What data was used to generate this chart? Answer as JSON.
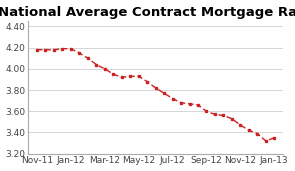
{
  "title": "National Average Contract Mortgage Rate",
  "x_labels": [
    "Nov-11",
    "Jan-12",
    "Mar-12",
    "May-12",
    "Jul-12",
    "Sep-12",
    "Nov-12",
    "Jan-13"
  ],
  "x_values": [
    0,
    2,
    4,
    6,
    8,
    10,
    12,
    14
  ],
  "y_data_x": [
    0,
    0.5,
    1,
    1.5,
    2,
    2.5,
    3,
    3.5,
    4,
    4.5,
    5,
    5.5,
    6,
    6.5,
    7,
    7.5,
    8,
    8.5,
    9,
    9.5,
    10,
    10.5,
    11,
    11.5,
    12,
    12.5,
    13,
    13.5,
    14
  ],
  "y_data_y": [
    4.18,
    4.18,
    4.18,
    4.19,
    4.19,
    4.15,
    4.1,
    4.04,
    4.0,
    3.95,
    3.92,
    3.93,
    3.93,
    3.88,
    3.82,
    3.77,
    3.72,
    3.68,
    3.67,
    3.66,
    3.6,
    3.57,
    3.56,
    3.53,
    3.47,
    3.42,
    3.39,
    3.32,
    3.35
  ],
  "ylim": [
    3.2,
    4.45
  ],
  "yticks": [
    3.2,
    3.4,
    3.6,
    3.8,
    4.0,
    4.2,
    4.4
  ],
  "line_color": "#cc2222",
  "background_color": "#ffffff",
  "plot_bg_color": "#ffffff",
  "title_fontsize": 9.5,
  "tick_fontsize": 6.5,
  "grid_color": "#d0d0d0"
}
